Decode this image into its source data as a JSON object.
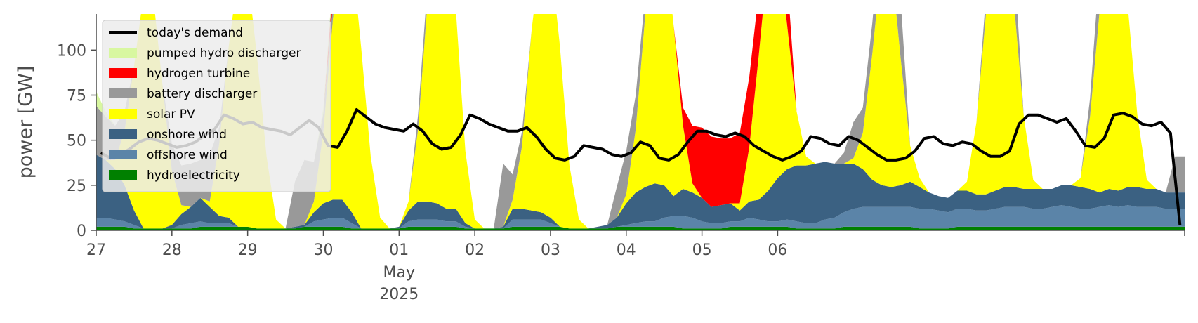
{
  "chart_data": {
    "type": "area",
    "ylabel": "power [GW]",
    "ylim": [
      0,
      120
    ],
    "yticks": [
      0,
      25,
      50,
      75,
      100
    ],
    "x_start": "2025-04-27 00:00",
    "x_end": "2025-05-07 00:00",
    "x_step_hours": 3,
    "xtick_labels": [
      "27",
      "28",
      "29",
      "30",
      "01",
      "02",
      "03",
      "04",
      "05",
      "06"
    ],
    "xtick_sub": [
      "May",
      "2025"
    ],
    "legend_position": "top-left",
    "grid": false,
    "demand": {
      "name": "today's demand",
      "color": "#000000",
      "values": [
        43,
        40,
        42,
        45,
        49,
        51,
        50,
        48,
        46,
        47,
        49,
        53,
        56,
        64,
        62,
        59,
        60,
        57,
        56,
        55,
        53,
        57,
        61,
        57,
        47,
        46,
        55,
        67,
        63,
        59,
        57,
        56,
        55,
        59,
        55,
        48,
        45,
        46,
        53,
        64,
        62,
        59,
        57,
        55,
        55,
        57,
        52,
        45,
        40,
        39,
        41,
        47,
        46,
        45,
        42,
        41,
        43,
        49,
        47,
        40,
        39,
        42,
        49,
        55,
        55,
        53,
        52,
        54,
        52,
        47,
        44,
        41,
        39,
        41,
        44,
        52,
        51,
        48,
        47,
        52,
        50,
        46,
        42,
        39,
        39,
        40,
        44,
        51,
        52,
        48,
        47,
        49,
        48,
        44,
        41,
        41,
        44,
        59,
        64,
        64,
        62,
        60,
        62,
        55,
        47,
        46,
        51,
        64,
        65,
        63,
        59,
        58,
        60,
        54,
        3
      ]
    },
    "series": [
      {
        "name": "hydroelectricity",
        "color": "#008000",
        "values": [
          2,
          2,
          2,
          2,
          1,
          1,
          1,
          1,
          1,
          1,
          1,
          2,
          2,
          2,
          2,
          2,
          2,
          1,
          1,
          1,
          1,
          1,
          2,
          2,
          2,
          2,
          2,
          1,
          1,
          1,
          1,
          1,
          1,
          2,
          2,
          2,
          2,
          2,
          2,
          1,
          1,
          1,
          1,
          1,
          2,
          2,
          2,
          2,
          2,
          2,
          1,
          1,
          1,
          1,
          1,
          2,
          2,
          2,
          2,
          2,
          2,
          2,
          1,
          1,
          1,
          1,
          1,
          2,
          2,
          2,
          2,
          2,
          2,
          2,
          1,
          1,
          1,
          1,
          1,
          2,
          2,
          2,
          2,
          2,
          2,
          2,
          2,
          1,
          1,
          1,
          1,
          2,
          2,
          2,
          2,
          2,
          2,
          2,
          2,
          2,
          2,
          2,
          2,
          2,
          2,
          2,
          2,
          2,
          2,
          2,
          2,
          2,
          2,
          2,
          2
        ]
      },
      {
        "name": "offshore wind",
        "color": "#5b84a8",
        "values": [
          5,
          5,
          4,
          3,
          2,
          0,
          0,
          0,
          0,
          2,
          3,
          3,
          2,
          2,
          2,
          0,
          0,
          0,
          0,
          0,
          0,
          0,
          0,
          3,
          4,
          5,
          5,
          3,
          0,
          0,
          0,
          0,
          0,
          3,
          4,
          4,
          4,
          3,
          3,
          1,
          0,
          0,
          0,
          0,
          4,
          4,
          4,
          4,
          2,
          0,
          0,
          0,
          0,
          0,
          0,
          0,
          1,
          2,
          3,
          3,
          5,
          6,
          7,
          6,
          4,
          3,
          3,
          3,
          3,
          5,
          4,
          3,
          3,
          4,
          4,
          3,
          3,
          5,
          6,
          8,
          10,
          11,
          11,
          11,
          11,
          11,
          11,
          11,
          11,
          10,
          9,
          10,
          10,
          9,
          9,
          10,
          11,
          11,
          11,
          10,
          10,
          11,
          12,
          11,
          10,
          10,
          11,
          12,
          11,
          12,
          11,
          11,
          11,
          10,
          10
        ]
      },
      {
        "name": "onshore wind",
        "color": "#3b6182",
        "values": [
          35,
          32,
          28,
          20,
          8,
          0,
          0,
          0,
          2,
          6,
          9,
          13,
          9,
          4,
          3,
          0,
          0,
          0,
          0,
          0,
          0,
          1,
          1,
          5,
          9,
          10,
          10,
          6,
          0,
          0,
          0,
          0,
          1,
          6,
          10,
          10,
          9,
          7,
          7,
          2,
          0,
          0,
          0,
          1,
          6,
          6,
          5,
          4,
          3,
          0,
          0,
          0,
          0,
          1,
          2,
          5,
          12,
          17,
          19,
          21,
          18,
          11,
          15,
          14,
          13,
          9,
          10,
          10,
          6,
          9,
          11,
          17,
          24,
          28,
          31,
          32,
          33,
          32,
          30,
          27,
          25,
          21,
          15,
          12,
          11,
          12,
          14,
          12,
          9,
          8,
          8,
          10,
          10,
          9,
          9,
          10,
          11,
          11,
          10,
          11,
          11,
          10,
          11,
          12,
          12,
          11,
          8,
          9,
          9,
          10,
          11,
          10,
          10,
          9,
          9
        ]
      },
      {
        "name": "solar PV",
        "color": "#ffff00",
        "values": [
          0,
          0,
          5,
          30,
          80,
          130,
          130,
          80,
          30,
          5,
          0,
          0,
          3,
          40,
          95,
          140,
          140,
          95,
          40,
          5,
          0,
          0,
          0,
          6,
          40,
          100,
          145,
          145,
          100,
          40,
          6,
          0,
          0,
          5,
          40,
          110,
          150,
          150,
          110,
          40,
          5,
          0,
          0,
          0,
          5,
          35,
          100,
          145,
          145,
          100,
          35,
          5,
          0,
          0,
          0,
          0,
          5,
          35,
          95,
          140,
          140,
          95,
          35,
          5,
          0,
          0,
          0,
          0,
          4,
          30,
          80,
          130,
          130,
          80,
          30,
          5,
          0,
          0,
          0,
          0,
          3,
          20,
          70,
          125,
          125,
          70,
          20,
          5,
          0,
          0,
          0,
          0,
          5,
          40,
          100,
          140,
          140,
          100,
          40,
          5,
          0,
          0,
          0,
          0,
          5,
          40,
          100,
          140,
          140,
          100,
          40,
          5,
          0,
          0,
          0
        ]
      },
      {
        "name": "battery discharger",
        "color": "#999999",
        "values": [
          27,
          24,
          19,
          11,
          0,
          0,
          0,
          0,
          15,
          22,
          24,
          21,
          26,
          9,
          0,
          0,
          0,
          0,
          0,
          0,
          0,
          25,
          36,
          22,
          10,
          8,
          0,
          0,
          0,
          0,
          0,
          0,
          0,
          0,
          8,
          10,
          0,
          0,
          0,
          0,
          0,
          0,
          0,
          35,
          14,
          8,
          0,
          0,
          0,
          0,
          0,
          0,
          0,
          0,
          0,
          17,
          24,
          19,
          11,
          0,
          0,
          0,
          0,
          0,
          0,
          0,
          0,
          0,
          0,
          0,
          0,
          0,
          0,
          0,
          0,
          0,
          0,
          0,
          0,
          6,
          20,
          14,
          17,
          25,
          30,
          32,
          0,
          0,
          0,
          0,
          0,
          0,
          0,
          0,
          10,
          14,
          20,
          25,
          0,
          0,
          0,
          0,
          0,
          0,
          0,
          10,
          24,
          20,
          15,
          0,
          0,
          0,
          0,
          0,
          20
        ]
      },
      {
        "name": "hydrogen turbine",
        "color": "#ff0000",
        "values": [
          0,
          0,
          0,
          0,
          0,
          0,
          0,
          0,
          0,
          0,
          0,
          0,
          0,
          0,
          0,
          0,
          0,
          0,
          0,
          0,
          0,
          0,
          0,
          0,
          0,
          10,
          15,
          0,
          0,
          0,
          0,
          0,
          0,
          0,
          0,
          0,
          0,
          0,
          0,
          0,
          0,
          0,
          0,
          0,
          0,
          0,
          0,
          0,
          0,
          0,
          0,
          0,
          0,
          0,
          0,
          0,
          0,
          0,
          0,
          0,
          0,
          0,
          10,
          32,
          39,
          39,
          37,
          36,
          39,
          39,
          35,
          29,
          24,
          27,
          0,
          0,
          0,
          0,
          0,
          0,
          0,
          0,
          0,
          0,
          0,
          0,
          0,
          0,
          0,
          0,
          0,
          0,
          0,
          0,
          0,
          0,
          0,
          0,
          0,
          0,
          0,
          0,
          0,
          0,
          0,
          0,
          0,
          0,
          0,
          0,
          0,
          0,
          0,
          0,
          0
        ]
      },
      {
        "name": "pumped hydro discharger",
        "color": "#d8f7a0",
        "values": [
          8,
          3,
          0,
          0,
          0,
          0,
          0,
          0,
          0,
          0,
          0,
          0,
          0,
          0,
          0,
          0,
          0,
          0,
          0,
          0,
          0,
          0,
          0,
          0,
          3,
          5,
          0,
          0,
          0,
          0,
          0,
          0,
          0,
          0,
          0,
          0,
          0,
          0,
          0,
          0,
          0,
          0,
          0,
          0,
          0,
          0,
          0,
          0,
          0,
          0,
          0,
          0,
          0,
          0,
          0,
          0,
          0,
          0,
          0,
          0,
          0,
          0,
          0,
          0,
          0,
          0,
          0,
          0,
          0,
          0,
          0,
          0,
          0,
          0,
          0,
          0,
          0,
          0,
          0,
          0,
          0,
          0,
          0,
          0,
          0,
          0,
          0,
          0,
          0,
          0,
          0,
          0,
          0,
          0,
          0,
          0,
          0,
          0,
          0,
          0,
          0,
          0,
          0,
          0,
          0,
          0,
          0,
          0,
          0,
          0,
          0,
          0,
          0,
          0,
          0
        ]
      }
    ],
    "legend_entries": [
      "today's demand",
      "pumped hydro discharger",
      "hydrogen turbine",
      "battery discharger",
      "solar PV",
      "onshore wind",
      "offshore wind",
      "hydroelectricity"
    ]
  }
}
